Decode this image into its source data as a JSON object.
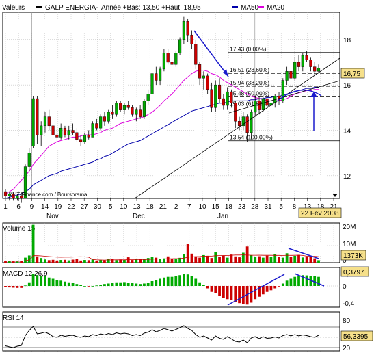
{
  "header": {
    "valeurs_label": "Valeurs",
    "symbol": "GALP ENERGIA-",
    "annee": "Année +Bas: 13,50 +Haut: 18,95",
    "ma50_label": "MA50",
    "ma20_label": "MA20"
  },
  "colors": {
    "up": "#00aa00",
    "down": "#cc0000",
    "ma50": "#0000aa",
    "ma20": "#dd00dd",
    "grid": "#b0b0b0",
    "trend": "#1a1acc",
    "price_box": "#f6e08a"
  },
  "chart_data": {
    "type": "candlestick",
    "title": "",
    "x_ticks": [
      "1",
      "6",
      "9",
      "14",
      "19",
      "22",
      "27",
      "30",
      "5",
      "10",
      "13",
      "18",
      "21",
      "2",
      "7",
      "10",
      "15",
      "18",
      "23",
      "28",
      "31",
      "5",
      "8",
      "13",
      "18",
      "21"
    ],
    "month_labels": [
      "Nov",
      "Dec",
      "Jan"
    ],
    "ylim": [
      11,
      19.2
    ],
    "y_ticks": [
      12,
      14,
      16,
      18
    ],
    "current_price": "16,75",
    "date_label": "22 Fev 2008",
    "watermark": "© IT-Finance.com / Boursorama",
    "fibonacci": [
      {
        "label": "17,43 (0,00%)",
        "value": 17.43
      },
      {
        "label": "16,51 (23,60%)",
        "value": 16.51
      },
      {
        "label": "15,94 (38,20%)",
        "value": 15.94
      },
      {
        "label": "15,48 (50,00%)",
        "value": 15.48
      },
      {
        "label": "15,03 (61,80%)",
        "value": 15.03
      },
      {
        "label": "13,54 (100,00%)",
        "value": 13.54
      }
    ],
    "candles": [
      {
        "o": 11.3,
        "h": 11.4,
        "l": 11.0,
        "c": 11.1
      },
      {
        "o": 11.1,
        "h": 11.3,
        "l": 10.9,
        "c": 11.2
      },
      {
        "o": 11.2,
        "h": 11.3,
        "l": 10.9,
        "c": 11.0
      },
      {
        "o": 11.0,
        "h": 11.2,
        "l": 10.9,
        "c": 11.1
      },
      {
        "o": 11.1,
        "h": 11.3,
        "l": 10.8,
        "c": 11.0
      },
      {
        "o": 11.0,
        "h": 12.5,
        "l": 11.0,
        "c": 12.4
      },
      {
        "o": 12.4,
        "h": 13.2,
        "l": 12.2,
        "c": 13.0
      },
      {
        "o": 13.3,
        "h": 15.5,
        "l": 13.2,
        "c": 15.4
      },
      {
        "o": 15.4,
        "h": 15.5,
        "l": 13.4,
        "c": 13.8
      },
      {
        "o": 13.8,
        "h": 14.4,
        "l": 13.3,
        "c": 14.2
      },
      {
        "o": 14.2,
        "h": 14.8,
        "l": 13.9,
        "c": 14.6
      },
      {
        "o": 14.6,
        "h": 14.9,
        "l": 14.0,
        "c": 14.2
      },
      {
        "o": 14.2,
        "h": 14.5,
        "l": 13.6,
        "c": 13.8
      },
      {
        "o": 13.8,
        "h": 14.0,
        "l": 13.5,
        "c": 13.7
      },
      {
        "o": 13.7,
        "h": 14.3,
        "l": 13.6,
        "c": 14.1
      },
      {
        "o": 14.1,
        "h": 14.2,
        "l": 13.7,
        "c": 13.8
      },
      {
        "o": 13.8,
        "h": 14.2,
        "l": 13.6,
        "c": 14.0
      },
      {
        "o": 14.0,
        "h": 14.3,
        "l": 13.8,
        "c": 13.9
      },
      {
        "o": 13.9,
        "h": 14.1,
        "l": 13.5,
        "c": 13.6
      },
      {
        "o": 13.6,
        "h": 13.8,
        "l": 13.3,
        "c": 13.5
      },
      {
        "o": 13.5,
        "h": 13.9,
        "l": 13.4,
        "c": 13.8
      },
      {
        "o": 13.8,
        "h": 14.0,
        "l": 13.6,
        "c": 13.7
      },
      {
        "o": 13.7,
        "h": 14.4,
        "l": 13.7,
        "c": 14.3
      },
      {
        "o": 14.3,
        "h": 14.5,
        "l": 14.0,
        "c": 14.1
      },
      {
        "o": 14.1,
        "h": 14.7,
        "l": 14.0,
        "c": 14.6
      },
      {
        "o": 14.6,
        "h": 14.8,
        "l": 14.2,
        "c": 14.4
      },
      {
        "o": 14.4,
        "h": 14.9,
        "l": 14.3,
        "c": 14.8
      },
      {
        "o": 14.8,
        "h": 15.1,
        "l": 14.5,
        "c": 14.7
      },
      {
        "o": 14.7,
        "h": 15.3,
        "l": 14.6,
        "c": 15.2
      },
      {
        "o": 15.2,
        "h": 15.3,
        "l": 14.8,
        "c": 14.9
      },
      {
        "o": 14.9,
        "h": 15.2,
        "l": 14.7,
        "c": 15.1
      },
      {
        "o": 15.1,
        "h": 15.3,
        "l": 14.9,
        "c": 15.0
      },
      {
        "o": 15.0,
        "h": 15.1,
        "l": 14.6,
        "c": 14.7
      },
      {
        "o": 14.7,
        "h": 15.0,
        "l": 14.4,
        "c": 14.9
      },
      {
        "o": 14.9,
        "h": 15.1,
        "l": 14.5,
        "c": 14.6
      },
      {
        "o": 14.6,
        "h": 15.4,
        "l": 14.5,
        "c": 15.3
      },
      {
        "o": 15.3,
        "h": 15.8,
        "l": 15.1,
        "c": 15.6
      },
      {
        "o": 15.6,
        "h": 16.6,
        "l": 15.4,
        "c": 16.5
      },
      {
        "o": 16.5,
        "h": 16.8,
        "l": 16.0,
        "c": 16.2
      },
      {
        "o": 16.2,
        "h": 16.8,
        "l": 16.0,
        "c": 16.7
      },
      {
        "o": 16.7,
        "h": 17.6,
        "l": 16.6,
        "c": 17.4
      },
      {
        "o": 17.4,
        "h": 17.6,
        "l": 16.9,
        "c": 17.0
      },
      {
        "o": 17.0,
        "h": 17.2,
        "l": 16.7,
        "c": 16.9
      },
      {
        "o": 16.9,
        "h": 17.5,
        "l": 16.8,
        "c": 17.4
      },
      {
        "o": 17.4,
        "h": 18.1,
        "l": 17.3,
        "c": 18.0
      },
      {
        "o": 18.0,
        "h": 19.0,
        "l": 17.8,
        "c": 18.8
      },
      {
        "o": 18.8,
        "h": 18.9,
        "l": 17.9,
        "c": 18.2
      },
      {
        "o": 18.2,
        "h": 18.4,
        "l": 17.6,
        "c": 17.8
      },
      {
        "o": 17.8,
        "h": 18.0,
        "l": 16.7,
        "c": 16.9
      },
      {
        "o": 16.9,
        "h": 17.0,
        "l": 16.0,
        "c": 16.3
      },
      {
        "o": 16.3,
        "h": 16.6,
        "l": 15.8,
        "c": 16.4
      },
      {
        "o": 16.4,
        "h": 16.5,
        "l": 15.6,
        "c": 15.8
      },
      {
        "o": 15.8,
        "h": 16.1,
        "l": 14.8,
        "c": 15.0
      },
      {
        "o": 15.0,
        "h": 16.2,
        "l": 14.8,
        "c": 16.0
      },
      {
        "o": 16.0,
        "h": 16.3,
        "l": 15.2,
        "c": 15.4
      },
      {
        "o": 15.4,
        "h": 15.6,
        "l": 14.9,
        "c": 15.1
      },
      {
        "o": 15.1,
        "h": 15.9,
        "l": 14.9,
        "c": 15.7
      },
      {
        "o": 15.7,
        "h": 15.8,
        "l": 15.0,
        "c": 15.2
      },
      {
        "o": 15.2,
        "h": 15.3,
        "l": 14.1,
        "c": 14.4
      },
      {
        "o": 14.4,
        "h": 14.6,
        "l": 14.0,
        "c": 14.2
      },
      {
        "o": 14.2,
        "h": 14.8,
        "l": 14.0,
        "c": 14.6
      },
      {
        "o": 14.6,
        "h": 14.7,
        "l": 13.5,
        "c": 13.9
      },
      {
        "o": 13.9,
        "h": 14.9,
        "l": 13.6,
        "c": 14.8
      },
      {
        "o": 14.8,
        "h": 15.5,
        "l": 14.6,
        "c": 15.3
      },
      {
        "o": 15.3,
        "h": 15.5,
        "l": 14.7,
        "c": 14.9
      },
      {
        "o": 14.9,
        "h": 15.5,
        "l": 14.8,
        "c": 15.4
      },
      {
        "o": 15.4,
        "h": 15.6,
        "l": 14.9,
        "c": 15.1
      },
      {
        "o": 15.1,
        "h": 15.4,
        "l": 14.9,
        "c": 15.2
      },
      {
        "o": 15.2,
        "h": 15.6,
        "l": 15.0,
        "c": 15.5
      },
      {
        "o": 15.5,
        "h": 15.7,
        "l": 15.1,
        "c": 15.3
      },
      {
        "o": 15.3,
        "h": 16.3,
        "l": 15.2,
        "c": 16.2
      },
      {
        "o": 16.2,
        "h": 16.8,
        "l": 16.0,
        "c": 16.6
      },
      {
        "o": 16.6,
        "h": 16.7,
        "l": 16.1,
        "c": 16.3
      },
      {
        "o": 16.3,
        "h": 17.2,
        "l": 16.2,
        "c": 17.0
      },
      {
        "o": 17.0,
        "h": 17.3,
        "l": 16.6,
        "c": 16.8
      },
      {
        "o": 16.8,
        "h": 17.4,
        "l": 16.6,
        "c": 17.3
      },
      {
        "o": 17.3,
        "h": 17.5,
        "l": 17.0,
        "c": 17.1
      },
      {
        "o": 17.1,
        "h": 17.2,
        "l": 16.6,
        "c": 16.8
      },
      {
        "o": 16.8,
        "h": 17.0,
        "l": 16.4,
        "c": 16.6
      },
      {
        "o": 16.6,
        "h": 16.9,
        "l": 16.5,
        "c": 16.75
      }
    ],
    "ma50": [
      11.0,
      11.05,
      11.1,
      11.15,
      11.2,
      11.3,
      11.4,
      11.6,
      11.7,
      11.8,
      11.9,
      12.0,
      12.05,
      12.1,
      12.2,
      12.25,
      12.3,
      12.35,
      12.4,
      12.45,
      12.5,
      12.55,
      12.6,
      12.7,
      12.75,
      12.85,
      12.9,
      13.0,
      13.1,
      13.2,
      13.3,
      13.4,
      13.45,
      13.5,
      13.55,
      13.65,
      13.75,
      13.85,
      13.95,
      14.05,
      14.15,
      14.25,
      14.35,
      14.45,
      14.55,
      14.65,
      14.75,
      14.85,
      14.9,
      14.95,
      15.0,
      15.05,
      15.1,
      15.15,
      15.2,
      15.2,
      15.25,
      15.3,
      15.3,
      15.3,
      15.3,
      15.3,
      15.35,
      15.35,
      15.4,
      15.4,
      15.45,
      15.45,
      15.5,
      15.5,
      15.55,
      15.6,
      15.65,
      15.7,
      15.75,
      15.8,
      15.85,
      15.85,
      15.9,
      15.9
    ],
    "ma20": [
      11.2,
      11.3,
      11.4,
      11.6,
      11.8,
      12.0,
      12.2,
      12.5,
      12.7,
      12.9,
      13.1,
      13.3,
      13.4,
      13.5,
      13.55,
      13.6,
      13.65,
      13.7,
      13.7,
      13.75,
      13.8,
      13.8,
      13.8,
      13.85,
      13.9,
      14.0,
      14.05,
      14.1,
      14.2,
      14.3,
      14.35,
      14.4,
      14.45,
      14.5,
      14.55,
      14.6,
      14.7,
      14.8,
      14.95,
      15.1,
      15.3,
      15.45,
      15.6,
      15.8,
      16.0,
      16.2,
      16.35,
      16.5,
      16.6,
      16.65,
      16.65,
      16.6,
      16.5,
      16.45,
      16.35,
      16.2,
      16.1,
      16.0,
      15.9,
      15.8,
      15.7,
      15.6,
      15.5,
      15.45,
      15.4,
      15.35,
      15.3,
      15.3,
      15.3,
      15.3,
      15.35,
      15.4,
      15.5,
      15.6,
      15.65,
      15.7,
      15.75,
      15.75,
      15.8,
      15.8
    ],
    "volume": {
      "label": "Volume 15",
      "y_ticks": [
        "20M",
        "10M",
        "0"
      ],
      "last": "1373K",
      "values": [
        0.9,
        0.8,
        0.7,
        0.6,
        0.9,
        2.8,
        4.0,
        21.0,
        3.5,
        2.6,
        1.8,
        1.4,
        1.6,
        1.2,
        1.5,
        1.6,
        1.3,
        1.7,
        2.2,
        1.2,
        1.5,
        1.4,
        1.8,
        1.1,
        1.6,
        1.3,
        2.2,
        1.9,
        1.4,
        1.8,
        1.6,
        3.0,
        1.5,
        2.0,
        1.8,
        1.7,
        2.6,
        3.3,
        2.8,
        1.9,
        2.4,
        3.5,
        2.2,
        1.9,
        2.7,
        4.8,
        10.5,
        5.0,
        3.5,
        2.8,
        4.2,
        3.8,
        2.6,
        6.0,
        3.1,
        3.8,
        2.8,
        4.5,
        3.5,
        3.0,
        5.5,
        9.0,
        4.2,
        3.1,
        3.6,
        2.8,
        3.9,
        3.2,
        4.6,
        3.3,
        2.8,
        5.2,
        3.4,
        3.8,
        4.3,
        2.9,
        3.5,
        3.2,
        2.4,
        1.37
      ],
      "up": [
        0,
        1,
        0,
        1,
        0,
        1,
        1,
        1,
        0,
        1,
        1,
        0,
        0,
        0,
        1,
        0,
        1,
        0,
        0,
        0,
        1,
        0,
        1,
        0,
        1,
        0,
        1,
        0,
        1,
        0,
        1,
        0,
        0,
        1,
        0,
        1,
        1,
        1,
        0,
        1,
        1,
        0,
        0,
        1,
        1,
        1,
        0,
        0,
        0,
        0,
        1,
        0,
        0,
        1,
        0,
        0,
        1,
        0,
        0,
        0,
        1,
        0,
        1,
        1,
        0,
        1,
        0,
        1,
        1,
        0,
        1,
        1,
        0,
        1,
        0,
        1,
        0,
        0,
        0,
        1
      ]
    },
    "macd": {
      "label": "MACD 12,26,9",
      "y_ticks": [
        "0,4",
        "0",
        "-0,4"
      ],
      "last": "0,3797",
      "values": [
        -0.05,
        -0.06,
        -0.07,
        -0.08,
        -0.08,
        0.02,
        0.15,
        0.5,
        0.45,
        0.42,
        0.4,
        0.35,
        0.3,
        0.25,
        0.22,
        0.18,
        0.15,
        0.12,
        0.08,
        0.03,
        0.0,
        -0.02,
        0.0,
        0.02,
        0.05,
        0.08,
        0.1,
        0.12,
        0.15,
        0.15,
        0.16,
        0.14,
        0.12,
        0.1,
        0.08,
        0.1,
        0.14,
        0.2,
        0.25,
        0.3,
        0.35,
        0.38,
        0.38,
        0.4,
        0.45,
        0.5,
        0.48,
        0.42,
        0.3,
        0.15,
        0.05,
        -0.1,
        -0.25,
        -0.3,
        -0.4,
        -0.5,
        -0.55,
        -0.6,
        -0.68,
        -0.72,
        -0.75,
        -0.78,
        -0.7,
        -0.55,
        -0.45,
        -0.35,
        -0.25,
        -0.18,
        -0.1,
        -0.02,
        0.1,
        0.22,
        0.3,
        0.38,
        0.42,
        0.45,
        0.44,
        0.42,
        0.4,
        0.38
      ]
    },
    "rsi": {
      "label": "RSI 14",
      "y_ticks": [
        "80",
        "50",
        "20"
      ],
      "last": "56,3395",
      "values": [
        25,
        22,
        20,
        24,
        26,
        55,
        70,
        82,
        60,
        62,
        65,
        60,
        52,
        50,
        56,
        53,
        55,
        56,
        52,
        50,
        54,
        52,
        58,
        55,
        60,
        57,
        61,
        58,
        63,
        60,
        62,
        60,
        55,
        58,
        55,
        62,
        65,
        72,
        66,
        70,
        76,
        72,
        68,
        73,
        78,
        84,
        76,
        70,
        58,
        50,
        54,
        48,
        42,
        54,
        47,
        44,
        52,
        45,
        38,
        36,
        42,
        34,
        48,
        52,
        46,
        52,
        47,
        48,
        51,
        48,
        55,
        58,
        54,
        58,
        54,
        57,
        55,
        52,
        50,
        56
      ]
    }
  }
}
